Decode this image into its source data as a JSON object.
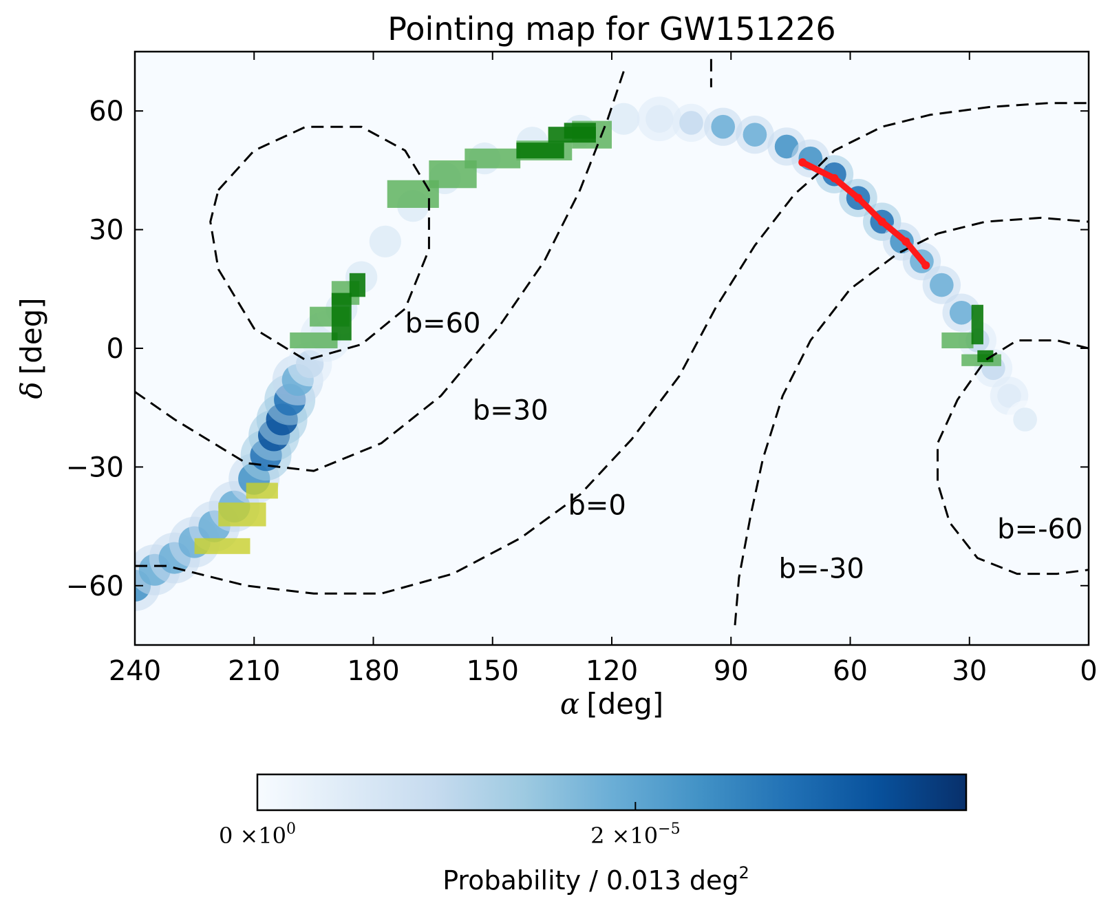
{
  "chart_data": {
    "type": "heatmap",
    "title": "Pointing map for GW151226",
    "xlabel_symbol": "α",
    "xlabel_unit": "[deg]",
    "ylabel_symbol": "δ",
    "ylabel_unit": "[deg]",
    "xlim": [
      240,
      0
    ],
    "ylim": [
      -75,
      75
    ],
    "x_inverted": true,
    "xticks": [
      240,
      210,
      180,
      150,
      120,
      90,
      60,
      30,
      0
    ],
    "yticks": [
      60,
      30,
      0,
      -30,
      -60
    ],
    "xtick_labels": [
      "240",
      "210",
      "180",
      "150",
      "120",
      "90",
      "60",
      "30",
      "0"
    ],
    "ytick_labels": [
      "60",
      "30",
      "0",
      "−30",
      "−60"
    ],
    "grid": false,
    "colorbar": {
      "label_main": "Probability / 0.013 deg",
      "label_sup": "2",
      "ticks": [
        {
          "base": "0 ×10",
          "exp": "0",
          "value": 0
        },
        {
          "base": "2 ×10",
          "exp": "−5",
          "value": 2e-05
        }
      ],
      "colormap": [
        "#f7fbff",
        "#deebf7",
        "#c6dbef",
        "#9ecae1",
        "#6baed6",
        "#4292c6",
        "#2171b5",
        "#08519c",
        "#08306b"
      ]
    },
    "probability_band": [
      {
        "ra": 240,
        "dec": -60,
        "w": 4,
        "level": 0.65
      },
      {
        "ra": 235,
        "dec": -56,
        "w": 4,
        "level": 0.55
      },
      {
        "ra": 230,
        "dec": -53,
        "w": 4,
        "level": 0.5
      },
      {
        "ra": 225,
        "dec": -49,
        "w": 4,
        "level": 0.45
      },
      {
        "ra": 220,
        "dec": -45,
        "w": 4,
        "level": 0.5
      },
      {
        "ra": 215,
        "dec": -40,
        "w": 4,
        "level": 0.55
      },
      {
        "ra": 210,
        "dec": -33,
        "w": 4,
        "level": 0.6
      },
      {
        "ra": 207,
        "dec": -27,
        "w": 4,
        "level": 0.8
      },
      {
        "ra": 205,
        "dec": -22,
        "w": 4,
        "level": 0.85
      },
      {
        "ra": 203,
        "dec": -18,
        "w": 4,
        "level": 0.9
      },
      {
        "ra": 201,
        "dec": -13,
        "w": 4,
        "level": 0.7
      },
      {
        "ra": 199,
        "dec": -8,
        "w": 4,
        "level": 0.5
      },
      {
        "ra": 196,
        "dec": -4,
        "w": 3.5,
        "level": 0.3
      },
      {
        "ra": 192,
        "dec": 3,
        "w": 4,
        "level": 0.15
      },
      {
        "ra": 188,
        "dec": 10,
        "w": 4,
        "level": 0.1
      },
      {
        "ra": 183,
        "dec": 18,
        "w": 4,
        "level": 0.1
      },
      {
        "ra": 177,
        "dec": 27,
        "w": 4,
        "level": 0.1
      },
      {
        "ra": 170,
        "dec": 36,
        "w": 4,
        "level": 0.1
      },
      {
        "ra": 162,
        "dec": 43,
        "w": 4,
        "level": 0.1
      },
      {
        "ra": 152,
        "dec": 48,
        "w": 4,
        "level": 0.1
      },
      {
        "ra": 140,
        "dec": 52,
        "w": 4,
        "level": 0.1
      },
      {
        "ra": 128,
        "dec": 55,
        "w": 4,
        "level": 0.1
      },
      {
        "ra": 117,
        "dec": 58,
        "w": 4,
        "level": 0.1
      },
      {
        "ra": 108,
        "dec": 58,
        "w": 3.5,
        "level": 0.15
      },
      {
        "ra": 100,
        "dec": 57,
        "w": 3,
        "level": 0.3
      },
      {
        "ra": 92,
        "dec": 56,
        "w": 3,
        "level": 0.45
      },
      {
        "ra": 84,
        "dec": 54,
        "w": 3,
        "level": 0.55
      },
      {
        "ra": 76,
        "dec": 51,
        "w": 3,
        "level": 0.6
      },
      {
        "ra": 70,
        "dec": 48,
        "w": 3,
        "level": 0.65
      },
      {
        "ra": 64,
        "dec": 44,
        "w": 3,
        "level": 0.7
      },
      {
        "ra": 58,
        "dec": 38,
        "w": 3,
        "level": 0.75
      },
      {
        "ra": 52,
        "dec": 32,
        "w": 3,
        "level": 0.7
      },
      {
        "ra": 47,
        "dec": 27,
        "w": 3,
        "level": 0.6
      },
      {
        "ra": 42,
        "dec": 22,
        "w": 3,
        "level": 0.55
      },
      {
        "ra": 37,
        "dec": 16,
        "w": 3,
        "level": 0.5
      },
      {
        "ra": 32,
        "dec": 9,
        "w": 3,
        "level": 0.45
      },
      {
        "ra": 28,
        "dec": 2,
        "w": 3,
        "level": 0.3
      },
      {
        "ra": 24,
        "dec": -5,
        "w": 3,
        "level": 0.2
      },
      {
        "ra": 20,
        "dec": -12,
        "w": 3,
        "level": 0.15
      },
      {
        "ra": 16,
        "dec": -18,
        "w": 3,
        "level": 0.1
      }
    ],
    "pointings": [
      {
        "group": "light-green",
        "ra": 195,
        "dec": 2,
        "w": 12,
        "h": 4
      },
      {
        "group": "light-green",
        "ra": 191,
        "dec": 8,
        "w": 10,
        "h": 5
      },
      {
        "group": "light-green",
        "ra": 187,
        "dec": 14,
        "w": 7,
        "h": 6
      },
      {
        "group": "dark-green",
        "ra": 188,
        "dec": 8,
        "w": 5,
        "h": 12
      },
      {
        "group": "dark-green",
        "ra": 184,
        "dec": 16,
        "w": 4,
        "h": 6
      },
      {
        "group": "light-green",
        "ra": 170,
        "dec": 39,
        "w": 13,
        "h": 7
      },
      {
        "group": "light-green",
        "ra": 160,
        "dec": 44,
        "w": 12,
        "h": 7
      },
      {
        "group": "light-green",
        "ra": 150,
        "dec": 48,
        "w": 14,
        "h": 5
      },
      {
        "group": "light-green",
        "ra": 137,
        "dec": 50,
        "w": 14,
        "h": 5
      },
      {
        "group": "dark-green",
        "ra": 138,
        "dec": 50,
        "w": 12,
        "h": 4
      },
      {
        "group": "light-green",
        "ra": 125,
        "dec": 54,
        "w": 10,
        "h": 7
      },
      {
        "group": "dark-green",
        "ra": 130,
        "dec": 54,
        "w": 12,
        "h": 4
      },
      {
        "group": "dark-green",
        "ra": 128,
        "dec": 55,
        "w": 8,
        "h": 4
      },
      {
        "group": "light-green",
        "ra": 33,
        "dec": 2,
        "w": 8,
        "h": 4
      },
      {
        "group": "light-green",
        "ra": 27,
        "dec": -3,
        "w": 10,
        "h": 3
      },
      {
        "group": "dark-green",
        "ra": 28,
        "dec": 6,
        "w": 3,
        "h": 10
      },
      {
        "group": "dark-green",
        "ra": 26,
        "dec": -2,
        "w": 4,
        "h": 3
      },
      {
        "group": "yellow",
        "ra": 218,
        "dec": -50,
        "w": 14,
        "h": 4
      },
      {
        "group": "yellow",
        "ra": 213,
        "dec": -42,
        "w": 12,
        "h": 6
      },
      {
        "group": "yellow",
        "ra": 208,
        "dec": -36,
        "w": 8,
        "h": 4
      }
    ],
    "red_track": [
      {
        "ra": 72,
        "dec": 47
      },
      {
        "ra": 64,
        "dec": 43
      },
      {
        "ra": 58,
        "dec": 38
      },
      {
        "ra": 52,
        "dec": 32
      },
      {
        "ra": 46,
        "dec": 27
      },
      {
        "ra": 41,
        "dec": 21
      }
    ],
    "galactic_contours": [
      {
        "label": "b=60",
        "label_at": {
          "ra": 172,
          "dec": 4
        },
        "paths": [
          [
            [
              219,
              40
            ],
            [
              210,
              50
            ],
            [
              197,
              56
            ],
            [
              183,
              56
            ],
            [
              172,
              50
            ],
            [
              166,
              40
            ],
            [
              166,
              25
            ],
            [
              172,
              10
            ],
            [
              183,
              1
            ],
            [
              197,
              -3
            ],
            [
              210,
              5
            ],
            [
              219,
              20
            ],
            [
              221,
              32
            ],
            [
              219,
              40
            ]
          ]
        ]
      },
      {
        "label": "b=30",
        "label_at": {
          "ra": 155,
          "dec": -18
        },
        "paths": [
          [
            [
              117,
              70
            ],
            [
              121,
              58
            ],
            [
              128,
              40
            ],
            [
              137,
              22
            ],
            [
              148,
              6
            ],
            [
              163,
              -12
            ],
            [
              178,
              -24
            ],
            [
              195,
              -31
            ],
            [
              212,
              -29
            ],
            [
              230,
              -18
            ],
            [
              240,
              -11
            ]
          ]
        ]
      },
      {
        "label": "b=0",
        "label_at": {
          "ra": 131,
          "dec": -42
        },
        "paths": [
          [
            [
              95,
              78
            ],
            [
              95,
              66
            ]
          ],
          [
            [
              240,
              -55
            ],
            [
              232,
              -55
            ],
            [
              212,
              -60
            ],
            [
              195,
              -62
            ],
            [
              178,
              -62
            ],
            [
              160,
              -57
            ],
            [
              143,
              -48
            ],
            [
              128,
              -37
            ],
            [
              115,
              -23
            ],
            [
              103,
              -7
            ],
            [
              94,
              10
            ],
            [
              84,
              26
            ],
            [
              74,
              39
            ],
            [
              66,
              46
            ]
          ]
        ]
      },
      {
        "label": "b=-30",
        "label_at": {
          "ra": 78,
          "dec": -58
        },
        "paths": [
          [
            [
              89,
              -70
            ],
            [
              88,
              -58
            ],
            [
              85,
              -42
            ],
            [
              82,
              -28
            ],
            [
              77,
              -12
            ],
            [
              70,
              2
            ],
            [
              60,
              15
            ],
            [
              48,
              24
            ],
            [
              38,
              29
            ],
            [
              26,
              32
            ],
            [
              12,
              33
            ],
            [
              0,
              32
            ]
          ]
        ]
      },
      {
        "label": "b=-60",
        "label_at": {
          "ra": 23,
          "dec": -48
        },
        "paths": [
          [
            [
              0,
              0
            ],
            [
              8,
              2
            ],
            [
              18,
              2
            ],
            [
              26,
              -3
            ],
            [
              33,
              -13
            ],
            [
              38,
              -24
            ],
            [
              38,
              -34
            ],
            [
              35,
              -44
            ],
            [
              28,
              -53
            ],
            [
              18,
              -57
            ],
            [
              8,
              -57
            ],
            [
              0,
              -56
            ]
          ]
        ]
      },
      {
        "label": "",
        "label_at": null,
        "paths": [
          [
            [
              68,
              46
            ],
            [
              64,
              50
            ],
            [
              52,
              56
            ],
            [
              40,
              59
            ],
            [
              25,
              61
            ],
            [
              10,
              62
            ],
            [
              0,
              62
            ]
          ]
        ]
      }
    ]
  }
}
